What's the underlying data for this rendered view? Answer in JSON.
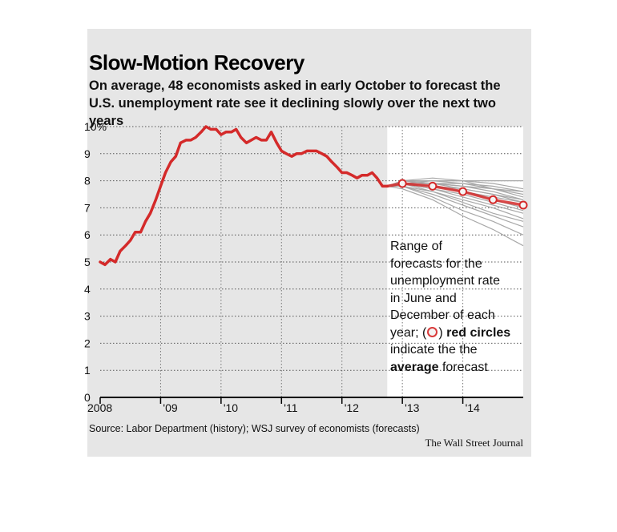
{
  "chart_data": {
    "type": "line",
    "title": "Slow-Motion Recovery",
    "subtitle": "On average, 48 economists asked in early October to forecast the U.S. unemployment rate see it declining slowly over the next two years",
    "xlabel": "",
    "ylabel": "",
    "ylim": [
      0,
      10
    ],
    "y_ticks": [
      "0",
      "1",
      "2",
      "3",
      "4",
      "5",
      "6",
      "7",
      "8",
      "9",
      "10%"
    ],
    "x_ticks": [
      {
        "label": "2008",
        "x": 2008.0
      },
      {
        "label": "'09",
        "x": 2009.0
      },
      {
        "label": "'10",
        "x": 2010.0
      },
      {
        "label": "'11",
        "x": 2011.0
      },
      {
        "label": "'12",
        "x": 2012.0
      },
      {
        "label": "'13",
        "x": 2013.0
      },
      {
        "label": "'14",
        "x": 2014.0
      }
    ],
    "forecast_start": 2012.75,
    "grid": true,
    "series": [
      {
        "role": "history",
        "color": "#d42a2a",
        "x": [
          2008.0,
          2008.08,
          2008.17,
          2008.25,
          2008.33,
          2008.42,
          2008.5,
          2008.58,
          2008.67,
          2008.75,
          2008.83,
          2008.92,
          2009.0,
          2009.08,
          2009.17,
          2009.25,
          2009.33,
          2009.42,
          2009.5,
          2009.58,
          2009.67,
          2009.75,
          2009.83,
          2009.92,
          2010.0,
          2010.08,
          2010.17,
          2010.25,
          2010.33,
          2010.42,
          2010.5,
          2010.58,
          2010.67,
          2010.75,
          2010.83,
          2010.92,
          2011.0,
          2011.08,
          2011.17,
          2011.25,
          2011.33,
          2011.42,
          2011.5,
          2011.58,
          2011.67,
          2011.75,
          2011.83,
          2011.92,
          2012.0,
          2012.08,
          2012.17,
          2012.25,
          2012.33,
          2012.42,
          2012.5,
          2012.58,
          2012.67,
          2012.75
        ],
        "y": [
          5.0,
          4.9,
          5.1,
          5.0,
          5.4,
          5.6,
          5.8,
          6.1,
          6.1,
          6.5,
          6.8,
          7.3,
          7.8,
          8.3,
          8.7,
          8.9,
          9.4,
          9.5,
          9.5,
          9.6,
          9.8,
          10.0,
          9.9,
          9.9,
          9.7,
          9.8,
          9.8,
          9.9,
          9.6,
          9.4,
          9.5,
          9.6,
          9.5,
          9.5,
          9.8,
          9.4,
          9.1,
          9.0,
          8.9,
          9.0,
          9.0,
          9.1,
          9.1,
          9.1,
          9.0,
          8.9,
          8.7,
          8.5,
          8.3,
          8.3,
          8.2,
          8.1,
          8.2,
          8.2,
          8.3,
          8.1,
          7.8,
          7.8
        ]
      },
      {
        "role": "average forecast",
        "color": "#d42a2a",
        "x": [
          2012.75,
          2013.0,
          2013.5,
          2014.0,
          2014.5,
          2015.0
        ],
        "y": [
          7.8,
          7.9,
          7.8,
          7.6,
          7.3,
          7.1
        ],
        "markers": [
          2013.0,
          2013.5,
          2014.0,
          2014.5,
          2015.0
        ]
      },
      {
        "role": "individual forecasts",
        "color": "#a8a8a8",
        "x": [
          2012.75,
          2013.0,
          2013.5,
          2014.0,
          2014.5,
          2015.0
        ],
        "lines": [
          [
            7.8,
            8.0,
            8.0,
            8.0,
            8.0,
            8.0
          ],
          [
            7.8,
            8.0,
            8.0,
            7.9,
            7.7,
            7.5
          ],
          [
            7.8,
            8.0,
            7.9,
            7.9,
            7.8,
            7.6
          ],
          [
            7.8,
            8.0,
            7.9,
            7.8,
            7.7,
            7.6
          ],
          [
            7.8,
            7.9,
            7.9,
            7.8,
            7.6,
            7.3
          ],
          [
            7.8,
            7.9,
            7.9,
            7.7,
            7.5,
            7.3
          ],
          [
            7.8,
            7.9,
            7.8,
            7.7,
            7.5,
            7.2
          ],
          [
            7.8,
            7.9,
            7.8,
            7.6,
            7.4,
            7.2
          ],
          [
            7.8,
            7.9,
            7.8,
            7.6,
            7.3,
            7.0
          ],
          [
            7.8,
            7.9,
            7.7,
            7.5,
            7.2,
            6.9
          ],
          [
            7.8,
            7.9,
            7.7,
            7.4,
            7.1,
            6.8
          ],
          [
            7.8,
            7.8,
            7.6,
            7.3,
            7.0,
            6.6
          ],
          [
            7.8,
            7.9,
            7.6,
            7.2,
            6.8,
            6.5
          ],
          [
            7.8,
            7.8,
            7.5,
            7.1,
            6.7,
            6.3
          ],
          [
            7.8,
            7.8,
            7.4,
            6.9,
            6.5,
            6.0
          ],
          [
            7.8,
            7.7,
            7.3,
            6.7,
            6.2,
            5.6
          ],
          [
            7.8,
            8.0,
            8.1,
            8.0,
            7.7,
            7.4
          ],
          [
            7.8,
            7.9,
            8.0,
            8.0,
            7.9,
            7.7
          ]
        ]
      }
    ],
    "annotation": {
      "line1": "Range of",
      "line2": "forecasts for the",
      "line3": "unemployment rate",
      "line4": "in June and",
      "line5": "December of each",
      "line6_pre": "year; (",
      "line6_post": ")",
      "line6_bold": "red circles",
      "line7": "indicate the the",
      "line8_bold": "average",
      "line8_post": "forecast"
    },
    "source": "Source: Labor Department (history); WSJ survey of economists (forecasts)",
    "credit": "The Wall Street Journal"
  },
  "colors": {
    "background": "#e6e6e6",
    "forecast_panel": "#ffffff",
    "history_line": "#d42a2a",
    "forecast_lines": "#a8a8a8"
  }
}
